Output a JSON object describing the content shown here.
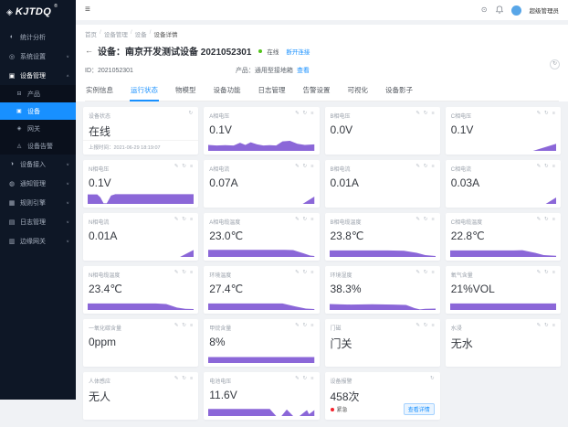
{
  "brand": {
    "logo_text": "KJTDQ",
    "trademark": "®",
    "cube_glyph": "◈"
  },
  "topbar": {
    "collapse_glyph": "≡",
    "globe_glyph": "⊙",
    "username": "超级管理员"
  },
  "colors": {
    "accent": "#1890ff",
    "online_green": "#52c41a",
    "alarm_red": "#f5222d",
    "chart_purple": "#8b67d8",
    "sidebar_bg": "#0e1726",
    "sidebar_selected": "#1890ff"
  },
  "sidebar": {
    "items": [
      {
        "key": "stats",
        "label": "统计分析",
        "glyph": "◐",
        "chevron": ""
      },
      {
        "key": "system-settings",
        "label": "系统设置",
        "glyph": "◎",
        "chevron": "∨"
      },
      {
        "key": "device-mgmt",
        "label": "设备管理",
        "glyph": "▣",
        "chevron": "∧",
        "active": true,
        "children": [
          {
            "key": "product",
            "label": "产品",
            "glyph": "⊟"
          },
          {
            "key": "device",
            "label": "设备",
            "glyph": "▣",
            "selected": true
          },
          {
            "key": "gateway",
            "label": "网关",
            "glyph": "◈"
          },
          {
            "key": "device-alarm",
            "label": "设备告警",
            "glyph": "◬"
          }
        ]
      },
      {
        "key": "device-access",
        "label": "设备接入",
        "glyph": "◑",
        "chevron": "∨"
      },
      {
        "key": "notify-mgmt",
        "label": "通知管理",
        "glyph": "◍",
        "chevron": "∨"
      },
      {
        "key": "rule-engine",
        "label": "规则引擎",
        "glyph": "▦",
        "chevron": "∨"
      },
      {
        "key": "log-mgmt",
        "label": "日志管理",
        "glyph": "▤",
        "chevron": "∨"
      },
      {
        "key": "edge-gateway",
        "label": "边缘网关",
        "glyph": "▥",
        "chevron": "∨"
      }
    ]
  },
  "breadcrumb": [
    "首页",
    "设备管理",
    "设备",
    "设备详情"
  ],
  "device": {
    "back_glyph": "←",
    "title": "设备：南京开发测试设备 2021052301",
    "status": "在线",
    "action_link": "断开连接",
    "id_label": "ID：2021052301",
    "product_label": "产品：通用型接地箱",
    "product_link": "查看",
    "refresh_glyph": "↻"
  },
  "tabs": [
    {
      "key": "instance-info",
      "label": "实例信息"
    },
    {
      "key": "run-status",
      "label": "运行状态",
      "active": true
    },
    {
      "key": "thing-model",
      "label": "物模型"
    },
    {
      "key": "device-function",
      "label": "设备功能"
    },
    {
      "key": "log-mgmt",
      "label": "日志管理"
    },
    {
      "key": "alarm-settings",
      "label": "告警设置"
    },
    {
      "key": "visualization",
      "label": "可视化"
    },
    {
      "key": "device-shadow",
      "label": "设备影子"
    }
  ],
  "card_icon_glyphs": {
    "edit": "✎",
    "refresh": "↻",
    "more": "≡"
  },
  "cards": [
    {
      "key": "device-status",
      "title": "设备状态",
      "value": "在线",
      "icons": [
        "refresh"
      ],
      "footer": "上报时间：2021-06-29 18:19:07",
      "spark": []
    },
    {
      "key": "phase-a-voltage",
      "title": "A相电压",
      "value": "0.1V",
      "icons": [
        "edit",
        "refresh",
        "more"
      ],
      "spark": [
        [
          0,
          0.5
        ],
        [
          8,
          0.45
        ],
        [
          16,
          0.48
        ],
        [
          24,
          0.45
        ],
        [
          30,
          0.68
        ],
        [
          35,
          0.5
        ],
        [
          40,
          0.72
        ],
        [
          46,
          0.55
        ],
        [
          52,
          0.45
        ],
        [
          58,
          0.48
        ],
        [
          64,
          0.45
        ],
        [
          70,
          0.8
        ],
        [
          77,
          0.85
        ],
        [
          84,
          0.6
        ],
        [
          91,
          0.5
        ],
        [
          100,
          0.55
        ]
      ]
    },
    {
      "key": "phase-b-voltage",
      "title": "B相电压",
      "value": "0.0V",
      "icons": [
        "edit",
        "refresh",
        "more"
      ],
      "spark": []
    },
    {
      "key": "phase-c-voltage",
      "title": "C相电压",
      "value": "0.1V",
      "icons": [
        "edit",
        "refresh",
        "more"
      ],
      "spark": [
        [
          0,
          0
        ],
        [
          78,
          0
        ],
        [
          100,
          0.6
        ]
      ]
    },
    {
      "key": "phase-n-voltage",
      "title": "N相电压",
      "value": "0.1V",
      "icons": [
        "edit",
        "refresh",
        "more"
      ],
      "spark": [
        [
          0,
          0.8
        ],
        [
          9,
          0.8
        ],
        [
          12,
          0.55
        ],
        [
          15,
          0.05
        ],
        [
          18,
          0.05
        ],
        [
          22,
          0.7
        ],
        [
          26,
          0.82
        ],
        [
          100,
          0.82
        ]
      ]
    },
    {
      "key": "phase-a-current",
      "title": "A相电流",
      "value": "0.07A",
      "icons": [
        "edit",
        "refresh",
        "more"
      ],
      "spark": [
        [
          0,
          0
        ],
        [
          89,
          0
        ],
        [
          100,
          0.62
        ]
      ]
    },
    {
      "key": "phase-b-current",
      "title": "B相电流",
      "value": "0.01A",
      "icons": [
        "edit",
        "refresh",
        "more"
      ],
      "spark": []
    },
    {
      "key": "phase-c-current",
      "title": "C相电流",
      "value": "0.03A",
      "icons": [
        "edit",
        "refresh",
        "more"
      ],
      "spark": [
        [
          0,
          0
        ],
        [
          90,
          0
        ],
        [
          100,
          0.55
        ]
      ]
    },
    {
      "key": "phase-n-current",
      "title": "N相电流",
      "value": "0.01A",
      "icons": [
        "edit",
        "refresh",
        "more"
      ],
      "spark": [
        [
          0,
          0
        ],
        [
          87,
          0
        ],
        [
          100,
          0.6
        ]
      ]
    },
    {
      "key": "phase-a-cable-temp",
      "title": "A相电缆温度",
      "value": "23.0℃",
      "icons": [
        "edit",
        "refresh",
        "more"
      ],
      "spark": [
        [
          0,
          0.6
        ],
        [
          72,
          0.6
        ],
        [
          80,
          0.58
        ],
        [
          90,
          0.3
        ],
        [
          96,
          0.12
        ],
        [
          100,
          0.08
        ]
      ]
    },
    {
      "key": "phase-b-cable-temp",
      "title": "B相电缆温度",
      "value": "23.8℃",
      "icons": [
        "edit",
        "refresh",
        "more"
      ],
      "spark": [
        [
          0,
          0.55
        ],
        [
          55,
          0.55
        ],
        [
          70,
          0.52
        ],
        [
          82,
          0.35
        ],
        [
          90,
          0.15
        ],
        [
          100,
          0.08
        ]
      ]
    },
    {
      "key": "phase-c-cable-temp",
      "title": "C相电缆温度",
      "value": "22.8℃",
      "icons": [
        "edit",
        "refresh",
        "more"
      ],
      "spark": [
        [
          0,
          0.55
        ],
        [
          60,
          0.55
        ],
        [
          68,
          0.57
        ],
        [
          80,
          0.35
        ],
        [
          88,
          0.15
        ],
        [
          100,
          0.1
        ]
      ]
    },
    {
      "key": "phase-n-cable-temp",
      "title": "N相电缆温度",
      "value": "23.4℃",
      "icons": [
        "edit",
        "refresh",
        "more"
      ],
      "spark": [
        [
          0,
          0.55
        ],
        [
          64,
          0.55
        ],
        [
          74,
          0.5
        ],
        [
          84,
          0.2
        ],
        [
          92,
          0.1
        ],
        [
          100,
          0.08
        ]
      ]
    },
    {
      "key": "ambient-temp",
      "title": "环境温度",
      "value": "27.4℃",
      "icons": [
        "edit",
        "refresh",
        "more"
      ],
      "spark": [
        [
          0,
          0.55
        ],
        [
          58,
          0.55
        ],
        [
          70,
          0.55
        ],
        [
          82,
          0.3
        ],
        [
          92,
          0.12
        ],
        [
          100,
          0.08
        ]
      ]
    },
    {
      "key": "ambient-humidity",
      "title": "环境湿度",
      "value": "38.3%",
      "icons": [
        "edit",
        "refresh",
        "more"
      ],
      "spark": [
        [
          0,
          0.5
        ],
        [
          20,
          0.45
        ],
        [
          40,
          0.48
        ],
        [
          60,
          0.45
        ],
        [
          72,
          0.42
        ],
        [
          80,
          0.15
        ],
        [
          85,
          0.05
        ],
        [
          90,
          0.1
        ],
        [
          100,
          0.12
        ]
      ]
    },
    {
      "key": "oxygen-content",
      "title": "氧气含量",
      "value": "21%VOL",
      "icons": [
        "edit",
        "refresh",
        "more"
      ],
      "spark": [
        [
          0,
          0.55
        ],
        [
          100,
          0.55
        ]
      ]
    },
    {
      "key": "co-content",
      "title": "一氧化碳含量",
      "value": "0ppm",
      "icons": [
        "edit",
        "refresh",
        "more"
      ],
      "spark": []
    },
    {
      "key": "methane-content",
      "title": "甲烷含量",
      "value": "8%",
      "icons": [
        "edit",
        "refresh",
        "more"
      ],
      "spark": [
        [
          0,
          0.5
        ],
        [
          100,
          0.5
        ]
      ]
    },
    {
      "key": "door-sensor",
      "title": "门磁",
      "value": "门关",
      "icons": [
        "edit",
        "refresh",
        "more"
      ],
      "spark": []
    },
    {
      "key": "water-sensor",
      "title": "水浸",
      "value": "无水",
      "icons": [
        "edit",
        "refresh",
        "more"
      ],
      "spark": []
    },
    {
      "key": "human-sensor",
      "title": "人体感应",
      "value": "无人",
      "icons": [
        "edit",
        "refresh",
        "more"
      ],
      "spark": []
    },
    {
      "key": "battery-voltage",
      "title": "电池电压",
      "value": "11.6V",
      "icons": [
        "edit",
        "refresh",
        "more"
      ],
      "spark": [
        [
          0,
          0.6
        ],
        [
          58,
          0.6
        ],
        [
          64,
          0
        ],
        [
          69,
          0
        ],
        [
          74,
          0.55
        ],
        [
          80,
          0
        ],
        [
          86,
          0
        ],
        [
          93,
          0.5
        ],
        [
          95,
          0.15
        ],
        [
          100,
          0.5
        ]
      ]
    },
    {
      "key": "device-alarm",
      "title": "设备报警",
      "value": "458次",
      "icons": [
        "refresh"
      ],
      "alarm_level": "紧急",
      "detail_button": "查看详情",
      "spark": []
    }
  ]
}
